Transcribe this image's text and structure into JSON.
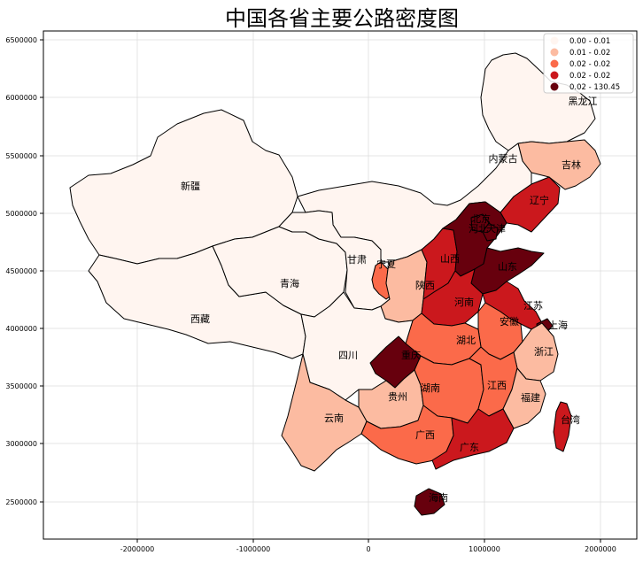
{
  "title": "中国各省主要公路密度图",
  "x_ticks": [
    "-2000000",
    "-1000000",
    "0",
    "1000000",
    "2000000"
  ],
  "y_ticks": [
    "6500000",
    "6000000",
    "5500000",
    "5000000",
    "4500000",
    "4000000",
    "3500000",
    "3000000",
    "2500000"
  ],
  "legend": [
    {
      "label": "0.00 - 0.01",
      "color": "#fff5f0"
    },
    {
      "label": "0.01 - 0.02",
      "color": "#fcbba1"
    },
    {
      "label": "0.02 - 0.02",
      "color": "#fb6a4a"
    },
    {
      "label": "0.02 - 0.02",
      "color": "#cb181d"
    },
    {
      "label": "0.02 - 130.45",
      "color": "#67000d"
    }
  ],
  "regions": [
    {
      "name": "黑龙江",
      "class": 0
    },
    {
      "name": "吉林",
      "class": 1
    },
    {
      "name": "辽宁",
      "class": 3
    },
    {
      "name": "内蒙古",
      "class": 0
    },
    {
      "name": "新疆",
      "class": 0
    },
    {
      "name": "西藏",
      "class": 0
    },
    {
      "name": "青海",
      "class": 0
    },
    {
      "name": "甘肃",
      "class": 0
    },
    {
      "name": "宁夏",
      "class": 2
    },
    {
      "name": "陕西",
      "class": 1
    },
    {
      "name": "山西",
      "class": 3
    },
    {
      "name": "北京",
      "class": 4
    },
    {
      "name": "天津",
      "class": 4
    },
    {
      "name": "河北",
      "class": 4
    },
    {
      "name": "山东",
      "class": 4
    },
    {
      "name": "河南",
      "class": 3
    },
    {
      "name": "江苏",
      "class": 3
    },
    {
      "name": "安徽",
      "class": 2
    },
    {
      "name": "上海",
      "class": 4
    },
    {
      "name": "浙江",
      "class": 1
    },
    {
      "name": "湖北",
      "class": 2
    },
    {
      "name": "四川",
      "class": 0
    },
    {
      "name": "重庆",
      "class": 4
    },
    {
      "name": "贵州",
      "class": 1
    },
    {
      "name": "湖南",
      "class": 2
    },
    {
      "name": "江西",
      "class": 2
    },
    {
      "name": "福建",
      "class": 1
    },
    {
      "name": "台湾",
      "class": 3
    },
    {
      "name": "云南",
      "class": 1
    },
    {
      "name": "广西",
      "class": 2
    },
    {
      "name": "广东",
      "class": 3
    },
    {
      "name": "海南",
      "class": 4
    }
  ]
}
